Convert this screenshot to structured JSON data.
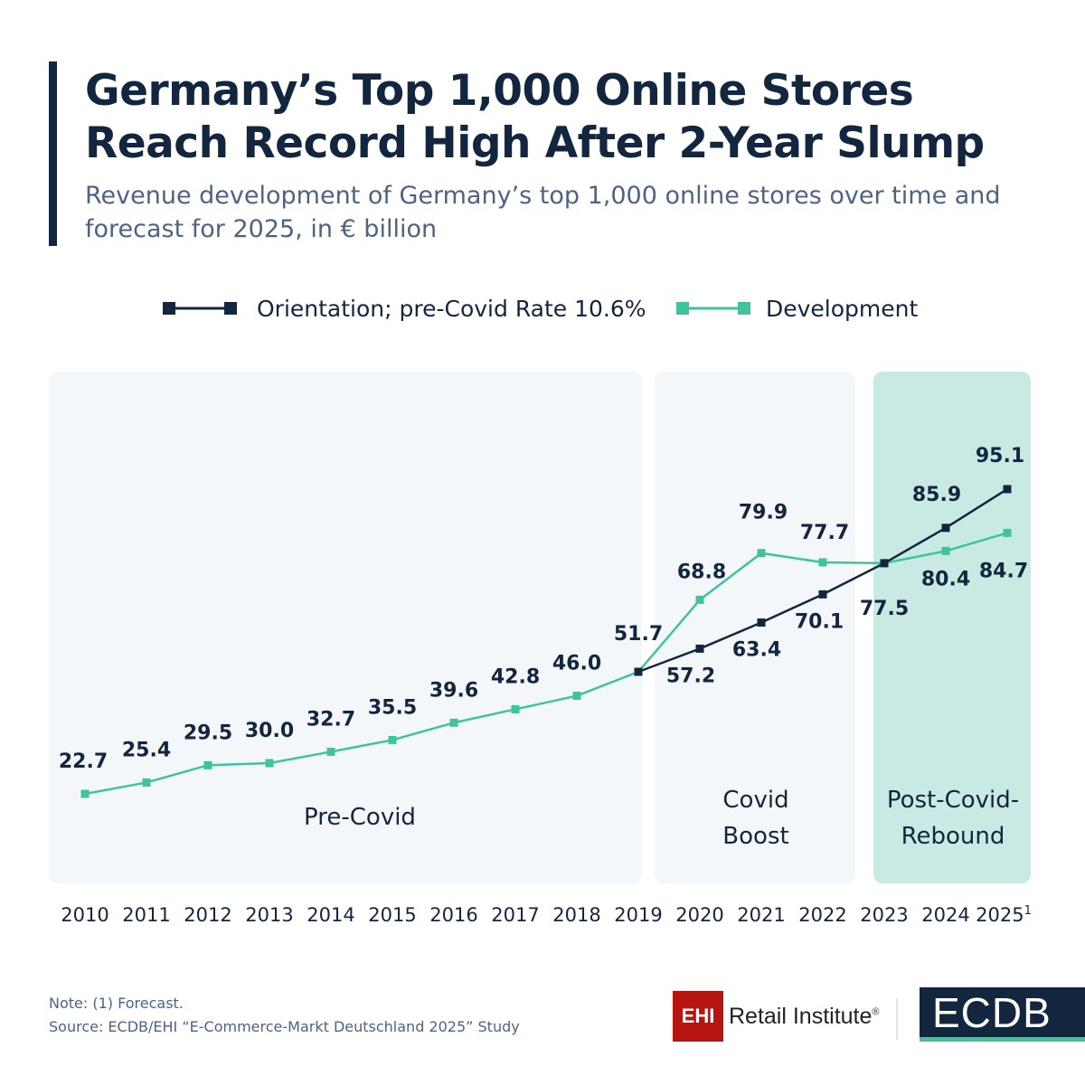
{
  "title_line1": "Germany’s Top 1,000 Online Stores",
  "title_line2": "Reach Record High After 2-Year Slump",
  "subtitle": "Revenue development of Germany’s top 1,000 online stores over time and forecast for 2025, in € billion",
  "note": "Note: (1) Forecast.",
  "source": "Source: ECDB/EHI “E-Commerce-Markt Deutschland 2025” Study",
  "logos": {
    "ehi_box": "EHI",
    "ehi_text": "Retail Institute",
    "ehi_reg": "®",
    "ecdb": "ECDB"
  },
  "colors": {
    "orientation": "#13263f",
    "development": "#3ec39b",
    "pre_covid_bg": "#f3f7fa",
    "covid_bg": "#f3f7fa",
    "post_covid_bg": "#c8eae2"
  },
  "chart_data": {
    "type": "line",
    "categories": [
      "2010",
      "2011",
      "2012",
      "2013",
      "2014",
      "2015",
      "2016",
      "2017",
      "2018",
      "2019",
      "2020",
      "2021",
      "2022",
      "2023",
      "2024",
      "2025"
    ],
    "category_footnote": {
      "2025": "1"
    },
    "series": [
      {
        "name": "Orientation; pre-Covid Rate 10.6%",
        "values": [
          null,
          null,
          null,
          null,
          null,
          null,
          null,
          null,
          null,
          51.7,
          57.2,
          63.4,
          70.1,
          77.5,
          85.9,
          95.1
        ]
      },
      {
        "name": "Development",
        "values": [
          22.7,
          25.4,
          29.5,
          30.0,
          32.7,
          35.5,
          39.6,
          42.8,
          46.0,
          51.7,
          68.8,
          79.9,
          77.7,
          77.5,
          80.4,
          84.7
        ]
      }
    ],
    "periods": [
      {
        "label": "Pre-Covid",
        "from": "2010",
        "to": "2019"
      },
      {
        "label": "Covid Boost",
        "from": "2020",
        "to": "2022"
      },
      {
        "label": "Post-Covid-Rebound",
        "from": "2023",
        "to": "2025"
      }
    ],
    "legend": "top-center",
    "grid": false
  }
}
